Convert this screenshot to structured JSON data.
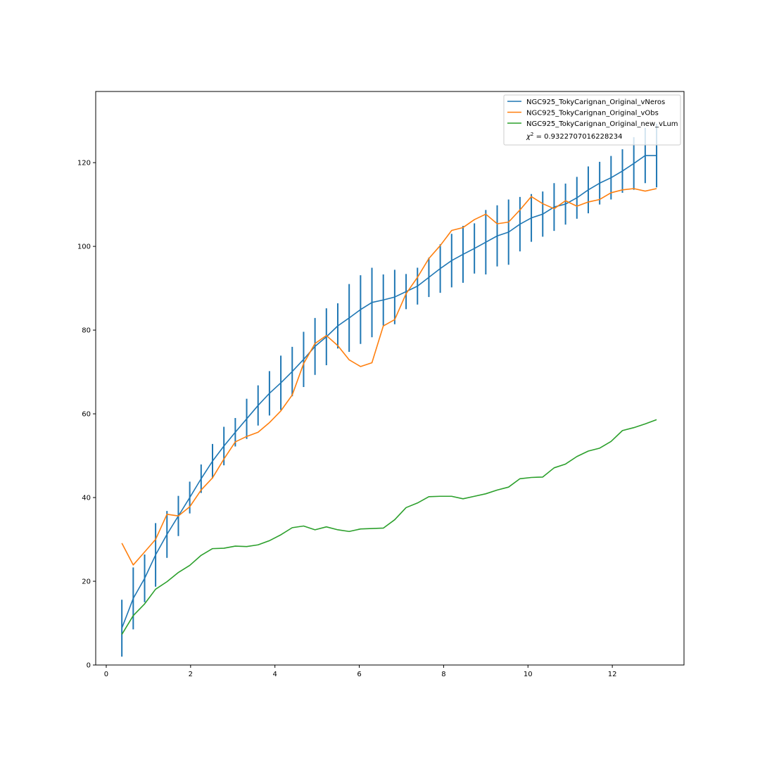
{
  "chart_data": {
    "type": "line",
    "title": "",
    "xlabel": "",
    "ylabel": "",
    "xlim": [
      -0.25,
      13.7
    ],
    "ylim": [
      0,
      137
    ],
    "x_ticks": [
      0,
      2,
      4,
      6,
      8,
      10,
      12
    ],
    "y_ticks": [
      0,
      20,
      40,
      60,
      80,
      100,
      120
    ],
    "grid": false,
    "legend_position": "top-right",
    "x": [
      0.37,
      0.64,
      0.91,
      1.17,
      1.44,
      1.71,
      1.98,
      2.25,
      2.52,
      2.79,
      3.06,
      3.33,
      3.6,
      3.87,
      4.14,
      4.41,
      4.68,
      4.95,
      5.22,
      5.49,
      5.76,
      6.03,
      6.3,
      6.57,
      6.84,
      7.11,
      7.38,
      7.65,
      7.92,
      8.19,
      8.46,
      8.73,
      9.0,
      9.27,
      9.54,
      9.81,
      10.08,
      10.35,
      10.62,
      10.89,
      11.16,
      11.43,
      11.7,
      11.97,
      12.24,
      12.51,
      12.78,
      13.05
    ],
    "series": [
      {
        "name": "NGC925_TokyCarignan_Original_vNeros",
        "color": "#1f77b4",
        "values": [
          8.8,
          15.9,
          20.7,
          26.3,
          31.2,
          35.6,
          40.0,
          44.5,
          48.7,
          52.3,
          55.6,
          58.8,
          62.0,
          64.9,
          67.4,
          70.1,
          73.0,
          76.1,
          78.4,
          81.0,
          82.9,
          84.9,
          86.6,
          87.2,
          87.9,
          89.2,
          90.5,
          92.6,
          94.7,
          96.6,
          98.1,
          99.5,
          101.0,
          102.5,
          103.4,
          105.3,
          106.8,
          107.7,
          109.4,
          110.1,
          111.6,
          113.5,
          115.1,
          116.4,
          118.0,
          119.8,
          121.7,
          121.7
        ],
        "error": [
          6.8,
          7.4,
          5.7,
          7.6,
          5.6,
          4.8,
          3.8,
          3.4,
          4.1,
          4.6,
          3.4,
          4.8,
          4.8,
          5.3,
          6.5,
          5.9,
          6.6,
          6.8,
          6.8,
          5.4,
          8.1,
          8.2,
          8.3,
          6.1,
          6.5,
          4.2,
          4.4,
          4.7,
          5.8,
          6.4,
          6.8,
          6.0,
          7.7,
          7.3,
          7.8,
          6.5,
          5.7,
          5.4,
          5.7,
          4.9,
          5.0,
          5.6,
          5.1,
          5.2,
          5.2,
          6.3,
          6.6,
          7.6
        ]
      },
      {
        "name": "NGC925_TokyCarignan_Original_vObs",
        "color": "#ff7f0e",
        "values": [
          29.1,
          23.9,
          27.0,
          30.0,
          36.0,
          35.6,
          37.8,
          41.8,
          44.7,
          49.2,
          53.3,
          54.6,
          55.6,
          57.9,
          60.7,
          64.5,
          72.0,
          76.8,
          78.7,
          76.3,
          72.9,
          71.3,
          72.2,
          81.0,
          82.5,
          88.7,
          92.6,
          97.1,
          100.2,
          103.8,
          104.5,
          106.4,
          107.7,
          105.4,
          105.8,
          108.7,
          111.9,
          110.2,
          109.0,
          110.9,
          109.6,
          110.6,
          111.2,
          112.8,
          113.5,
          113.8,
          113.2,
          113.8
        ]
      },
      {
        "name": "NGC925_TokyCarignan_Original_new_vLum",
        "color": "#2ca02c",
        "values": [
          7.3,
          11.8,
          14.6,
          18.1,
          19.9,
          22.1,
          23.8,
          26.2,
          27.8,
          27.9,
          28.4,
          28.3,
          28.7,
          29.7,
          31.1,
          32.8,
          33.2,
          32.3,
          33.0,
          32.3,
          31.9,
          32.5,
          32.6,
          32.7,
          34.7,
          37.6,
          38.7,
          40.2,
          40.3,
          40.3,
          39.7,
          40.3,
          40.9,
          41.8,
          42.5,
          44.5,
          44.8,
          44.9,
          47.1,
          48.0,
          49.8,
          51.1,
          51.8,
          53.4,
          56.0,
          56.7,
          57.6,
          58.6
        ]
      }
    ],
    "legend_entries": [
      "NGC925_TokyCarignan_Original_vNeros",
      "NGC925_TokyCarignan_Original_vObs",
      "NGC925_TokyCarignan_Original_new_vLum"
    ],
    "annotation": {
      "symbol": "χ",
      "superscript": "2",
      "text": " = 0.9322707016228234"
    }
  }
}
